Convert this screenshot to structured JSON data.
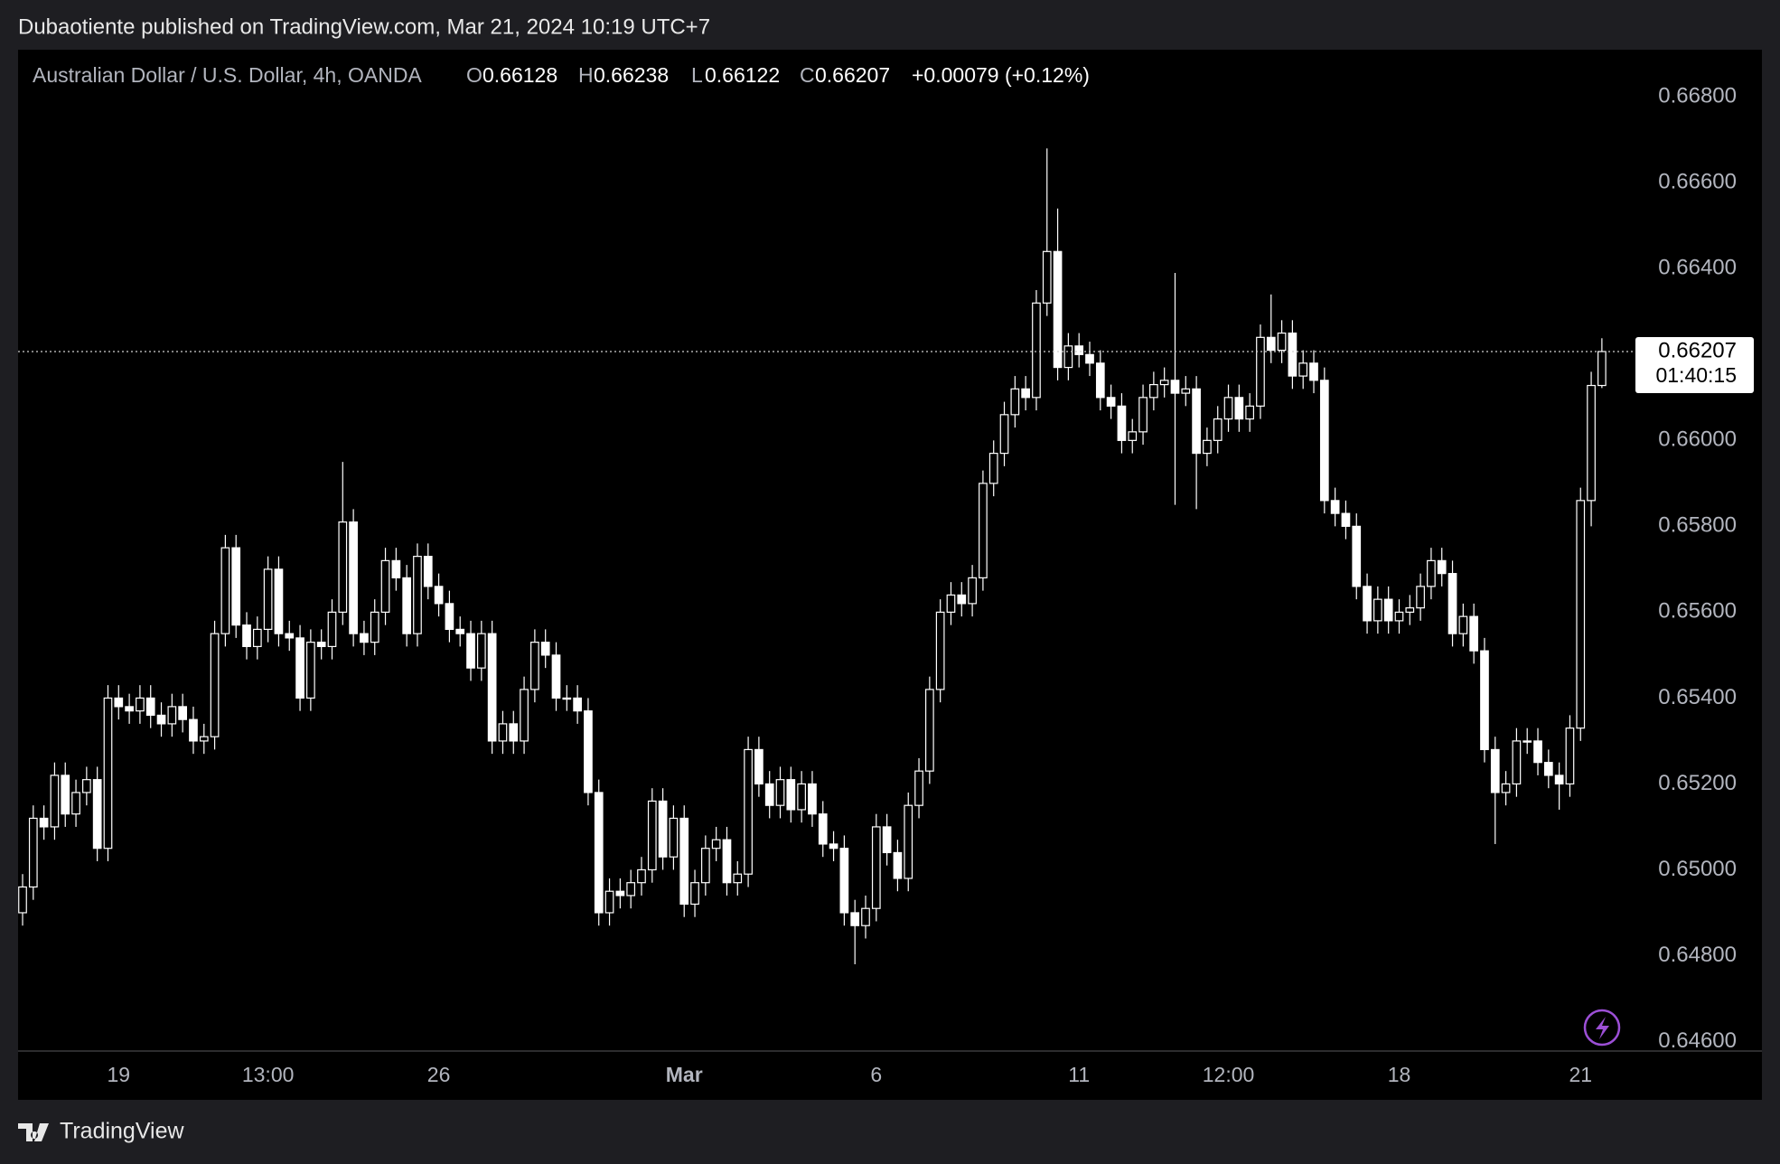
{
  "publisher": "Dubaotiente published on TradingView.com, Mar 21, 2024 10:19 UTC+7",
  "brand": "TradingView",
  "chart_data": {
    "type": "candlestick",
    "symbol": "Australian Dollar / U.S. Dollar, 4h, OANDA",
    "ohlc_labels": [
      "O",
      "H",
      "L",
      "C"
    ],
    "change": "+0.00079 (+0.12%)",
    "countdown": "01:40:15",
    "up_fill": "#000000",
    "down_fill": "#ffffff",
    "wick_color": "#ffffff",
    "categories": [
      null,
      null,
      null,
      null,
      null,
      null,
      null,
      null,
      null,
      "19",
      null,
      null,
      null,
      null,
      null,
      null,
      null,
      null,
      null,
      null,
      null,
      null,
      null,
      "13:00",
      null,
      null,
      null,
      null,
      null,
      null,
      null,
      null,
      null,
      null,
      null,
      null,
      null,
      null,
      null,
      "26",
      null,
      null,
      null,
      null,
      null,
      null,
      null,
      null,
      null,
      null,
      null,
      null,
      null,
      null,
      null,
      null,
      null,
      null,
      null,
      null,
      null,
      null,
      "Mar",
      null,
      null,
      null,
      null,
      null,
      null,
      null,
      null,
      null,
      null,
      null,
      null,
      null,
      null,
      null,
      null,
      null,
      "6",
      null,
      null,
      null,
      null,
      null,
      null,
      null,
      null,
      null,
      null,
      null,
      null,
      null,
      null,
      null,
      null,
      null,
      null,
      "11",
      null,
      null,
      null,
      null,
      null,
      null,
      null,
      null,
      null,
      null,
      null,
      null,
      null,
      "12:00",
      null,
      null,
      null,
      null,
      null,
      null,
      null,
      null,
      null,
      null,
      null,
      null,
      null,
      null,
      null,
      "18",
      null,
      null,
      null,
      null,
      null,
      null,
      null,
      null,
      null,
      null,
      null,
      null,
      null,
      null,
      null,
      null,
      "21",
      null,
      null
    ],
    "open": [
      0.649,
      0.6496,
      0.6512,
      0.651,
      0.6522,
      0.6513,
      0.6518,
      0.6521,
      0.6505,
      0.654,
      0.6538,
      0.6537,
      0.654,
      0.6536,
      0.6534,
      0.6538,
      0.6535,
      0.653,
      0.6531,
      0.6555,
      0.6575,
      0.6557,
      0.6552,
      0.6556,
      0.657,
      0.6555,
      0.6554,
      0.654,
      0.6553,
      0.6552,
      0.656,
      0.6581,
      0.6555,
      0.6553,
      0.656,
      0.6572,
      0.6568,
      0.6555,
      0.6573,
      0.6566,
      0.6562,
      0.6556,
      0.6555,
      0.6547,
      0.6555,
      0.653,
      0.6534,
      0.653,
      0.6542,
      0.6553,
      0.655,
      0.654,
      0.654,
      0.6537,
      0.6518,
      0.649,
      0.6495,
      0.6494,
      0.6497,
      0.65,
      0.6516,
      0.6503,
      0.6512,
      0.6492,
      0.6497,
      0.6505,
      0.6507,
      0.6497,
      0.6499,
      0.6528,
      0.652,
      0.6515,
      0.6521,
      0.6514,
      0.652,
      0.6513,
      0.6506,
      0.6505,
      0.649,
      0.6487,
      0.6491,
      0.651,
      0.6504,
      0.6498,
      0.6515,
      0.6523,
      0.6542,
      0.656,
      0.6564,
      0.6562,
      0.6568,
      0.659,
      0.6597,
      0.6606,
      0.6612,
      0.661,
      0.6632,
      0.6644,
      0.6617,
      0.6622,
      0.662,
      0.6618,
      0.661,
      0.6608,
      0.66,
      0.6602,
      0.661,
      0.6613,
      0.6614,
      0.6611,
      0.6612,
      0.6597,
      0.66,
      0.6605,
      0.661,
      0.6605,
      0.6608,
      0.6624,
      0.6621,
      0.6625,
      0.6615,
      0.6618,
      0.6614,
      0.6586,
      0.6583,
      0.658,
      0.6566,
      0.6558,
      0.6563,
      0.6558,
      0.656,
      0.6561,
      0.6566,
      0.6572,
      0.6569,
      0.6555,
      0.6559,
      0.6551,
      0.6528,
      0.6518,
      0.652,
      0.653,
      0.653,
      0.6525,
      0.6522,
      0.652,
      0.6533,
      0.6586,
      0.66128
    ],
    "high": [
      0.6499,
      0.6515,
      0.6515,
      0.6525,
      0.6525,
      0.6521,
      0.6524,
      0.6524,
      0.6543,
      0.6543,
      0.6541,
      0.6543,
      0.6543,
      0.6539,
      0.6541,
      0.6541,
      0.6538,
      0.6534,
      0.6558,
      0.6578,
      0.6578,
      0.656,
      0.6559,
      0.6573,
      0.6573,
      0.6558,
      0.6557,
      0.6556,
      0.6556,
      0.6563,
      0.6595,
      0.6584,
      0.6558,
      0.6563,
      0.6575,
      0.6575,
      0.6571,
      0.6576,
      0.6576,
      0.6569,
      0.6565,
      0.6559,
      0.6558,
      0.6558,
      0.6558,
      0.6537,
      0.6537,
      0.6545,
      0.6556,
      0.6556,
      0.6553,
      0.6543,
      0.6543,
      0.654,
      0.6521,
      0.6498,
      0.6498,
      0.65,
      0.6503,
      0.6519,
      0.6519,
      0.6515,
      0.6515,
      0.65,
      0.6508,
      0.651,
      0.651,
      0.6502,
      0.6531,
      0.6531,
      0.6523,
      0.6524,
      0.6524,
      0.6523,
      0.6523,
      0.6516,
      0.6509,
      0.6508,
      0.6493,
      0.6494,
      0.6513,
      0.6513,
      0.6507,
      0.6518,
      0.6526,
      0.6545,
      0.6563,
      0.6567,
      0.6567,
      0.6571,
      0.6593,
      0.66,
      0.6609,
      0.6615,
      0.6615,
      0.6635,
      0.6668,
      0.6654,
      0.6625,
      0.6625,
      0.6623,
      0.6621,
      0.6613,
      0.6611,
      0.6605,
      0.6613,
      0.6616,
      0.6617,
      0.6639,
      0.6615,
      0.6615,
      0.6603,
      0.6608,
      0.6613,
      0.6613,
      0.6611,
      0.6627,
      0.6634,
      0.6628,
      0.6628,
      0.6621,
      0.6621,
      0.6617,
      0.6589,
      0.6586,
      0.6583,
      0.6569,
      0.6566,
      0.6566,
      0.6563,
      0.6564,
      0.6569,
      0.6575,
      0.6575,
      0.6572,
      0.6562,
      0.6562,
      0.6554,
      0.6531,
      0.6523,
      0.6533,
      0.6533,
      0.6533,
      0.6528,
      0.6525,
      0.6536,
      0.6589,
      0.6616,
      0.66238
    ],
    "low": [
      0.6487,
      0.6493,
      0.6507,
      0.6507,
      0.651,
      0.651,
      0.6515,
      0.6502,
      0.6502,
      0.6535,
      0.6534,
      0.6534,
      0.6533,
      0.6531,
      0.6531,
      0.6532,
      0.6527,
      0.6527,
      0.6528,
      0.6552,
      0.6554,
      0.6549,
      0.6549,
      0.6553,
      0.6552,
      0.6551,
      0.6537,
      0.6537,
      0.6549,
      0.6549,
      0.6557,
      0.6552,
      0.655,
      0.655,
      0.6557,
      0.6565,
      0.6552,
      0.6552,
      0.6563,
      0.6559,
      0.6553,
      0.6552,
      0.6544,
      0.6544,
      0.6527,
      0.6527,
      0.6527,
      0.6527,
      0.6539,
      0.6547,
      0.6537,
      0.6537,
      0.6534,
      0.6515,
      0.6487,
      0.6487,
      0.6491,
      0.6491,
      0.6494,
      0.6497,
      0.65,
      0.65,
      0.6489,
      0.6489,
      0.6494,
      0.6502,
      0.6494,
      0.6494,
      0.6496,
      0.6517,
      0.6512,
      0.6512,
      0.6511,
      0.6511,
      0.651,
      0.6503,
      0.6502,
      0.6487,
      0.6478,
      0.6484,
      0.6488,
      0.6501,
      0.6495,
      0.6495,
      0.6512,
      0.652,
      0.6539,
      0.6557,
      0.6559,
      0.6559,
      0.6565,
      0.6587,
      0.6594,
      0.6603,
      0.6607,
      0.6607,
      0.6629,
      0.6614,
      0.6614,
      0.6617,
      0.6615,
      0.6607,
      0.6605,
      0.6597,
      0.6597,
      0.6599,
      0.6607,
      0.661,
      0.6585,
      0.6608,
      0.6584,
      0.6594,
      0.6597,
      0.6602,
      0.6602,
      0.6602,
      0.6605,
      0.6618,
      0.6618,
      0.6612,
      0.6612,
      0.6611,
      0.6583,
      0.658,
      0.6577,
      0.6563,
      0.6555,
      0.6555,
      0.6555,
      0.6555,
      0.6557,
      0.6558,
      0.6563,
      0.6566,
      0.6552,
      0.6552,
      0.6548,
      0.6525,
      0.6506,
      0.6515,
      0.6517,
      0.6527,
      0.6522,
      0.6519,
      0.6514,
      0.6517,
      0.653,
      0.658,
      0.66122
    ],
    "close": [
      0.6496,
      0.6512,
      0.651,
      0.6522,
      0.6513,
      0.6518,
      0.6521,
      0.6505,
      0.654,
      0.6538,
      0.6537,
      0.654,
      0.6536,
      0.6534,
      0.6538,
      0.6535,
      0.653,
      0.6531,
      0.6555,
      0.6575,
      0.6557,
      0.6552,
      0.6556,
      0.657,
      0.6555,
      0.6554,
      0.654,
      0.6553,
      0.6552,
      0.656,
      0.6581,
      0.6555,
      0.6553,
      0.656,
      0.6572,
      0.6568,
      0.6555,
      0.6573,
      0.6566,
      0.6562,
      0.6556,
      0.6555,
      0.6547,
      0.6555,
      0.653,
      0.6534,
      0.653,
      0.6542,
      0.6553,
      0.655,
      0.654,
      0.654,
      0.6537,
      0.6518,
      0.649,
      0.6495,
      0.6494,
      0.6497,
      0.65,
      0.6516,
      0.6503,
      0.6512,
      0.6492,
      0.6497,
      0.6505,
      0.6507,
      0.6497,
      0.6499,
      0.6528,
      0.652,
      0.6515,
      0.6521,
      0.6514,
      0.652,
      0.6513,
      0.6506,
      0.6505,
      0.649,
      0.6487,
      0.6491,
      0.651,
      0.6504,
      0.6498,
      0.6515,
      0.6523,
      0.6542,
      0.656,
      0.6564,
      0.6562,
      0.6568,
      0.659,
      0.6597,
      0.6606,
      0.6612,
      0.661,
      0.6632,
      0.6644,
      0.6617,
      0.6622,
      0.662,
      0.6618,
      0.661,
      0.6608,
      0.66,
      0.6602,
      0.661,
      0.6613,
      0.6614,
      0.6611,
      0.6612,
      0.6597,
      0.66,
      0.6605,
      0.661,
      0.6605,
      0.6608,
      0.6624,
      0.6621,
      0.6625,
      0.6615,
      0.6618,
      0.6614,
      0.6586,
      0.6583,
      0.658,
      0.6566,
      0.6558,
      0.6563,
      0.6558,
      0.656,
      0.6561,
      0.6566,
      0.6572,
      0.6569,
      0.6555,
      0.6559,
      0.6551,
      0.6528,
      0.6518,
      0.652,
      0.653,
      0.653,
      0.6525,
      0.6522,
      0.652,
      0.6533,
      0.6586,
      0.66128,
      0.66207
    ],
    "ylim": [
      0.6458,
      0.6691
    ],
    "yticks": [
      {
        "value": 0.668,
        "label": "0.66800"
      },
      {
        "value": 0.666,
        "label": "0.66600"
      },
      {
        "value": 0.664,
        "label": "0.66400"
      },
      {
        "value": 0.662,
        "label": "0.66200"
      },
      {
        "value": 0.66,
        "label": "0.66000"
      },
      {
        "value": 0.658,
        "label": "0.65800"
      },
      {
        "value": 0.656,
        "label": "0.65600"
      },
      {
        "value": 0.654,
        "label": "0.65400"
      },
      {
        "value": 0.652,
        "label": "0.65200"
      },
      {
        "value": 0.65,
        "label": "0.65000"
      },
      {
        "value": 0.648,
        "label": "0.64800"
      },
      {
        "value": 0.646,
        "label": "0.64600"
      }
    ]
  }
}
